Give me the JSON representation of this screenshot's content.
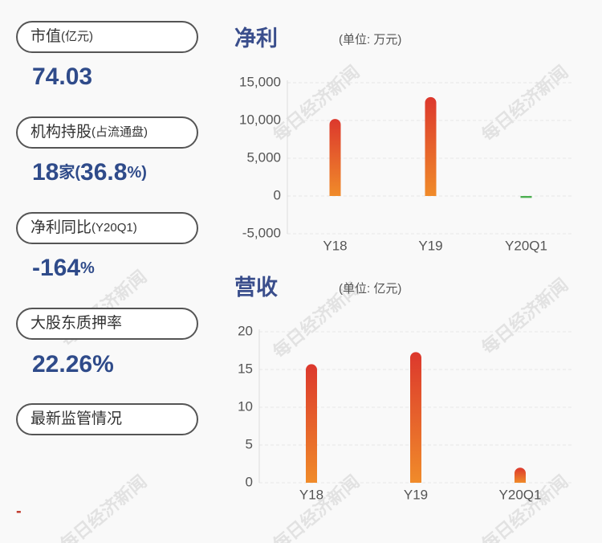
{
  "watermark": "每日经济新闻",
  "panel": {
    "items": [
      {
        "label": "市值",
        "label_note": "(亿元)",
        "value": "74.03"
      },
      {
        "label": "机构持股",
        "label_note": "(占流通盘)",
        "value_parts": [
          "18",
          "家(",
          "36.8",
          "%)"
        ]
      },
      {
        "label": "净利同比",
        "label_note": "(Y20Q1)",
        "value_parts": [
          "-164",
          "%"
        ]
      },
      {
        "label": "大股东质押率",
        "value": "22.26%"
      },
      {
        "label": "最新监管情况"
      }
    ],
    "footnote": "-"
  },
  "chart_data": [
    {
      "type": "bar",
      "title": "净利",
      "subtitle": "(单位: 万元)",
      "categories": [
        "Y18",
        "Y19",
        "Y20Q1"
      ],
      "values": [
        10200,
        13100,
        -250
      ],
      "ylim": [
        -5000,
        15000
      ],
      "yticks": [
        {
          "value": -5000,
          "label": "-5,000"
        },
        0,
        {
          "value": 5000,
          "label": "5,000"
        },
        {
          "value": 10000,
          "label": "10,000"
        },
        {
          "value": 15000,
          "label": "15,000"
        }
      ],
      "grid": true,
      "color": [
        "#dc382d",
        "#f08b2a"
      ],
      "negative_color": "#4caf50"
    },
    {
      "type": "bar",
      "title": "营收",
      "subtitle": "(单位: 亿元)",
      "categories": [
        "Y18",
        "Y19",
        "Y20Q1"
      ],
      "values": [
        15.7,
        17.3,
        2.0
      ],
      "ylim": [
        0,
        20
      ],
      "yticks": [
        0,
        5,
        10,
        15,
        20
      ],
      "grid": true,
      "color": [
        "#dc382d",
        "#f08b2a"
      ],
      "negative_color": "#4caf50"
    }
  ]
}
